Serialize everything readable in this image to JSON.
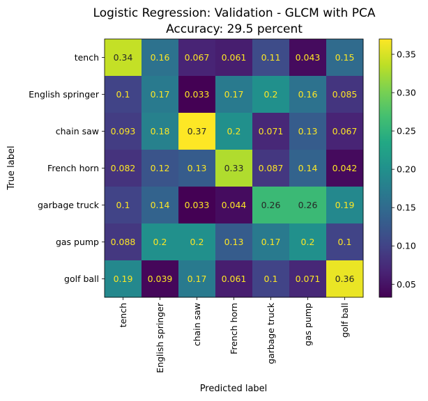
{
  "chart_data": {
    "type": "heatmap",
    "title": "Logistic Regression: Validation - GLCM with PCA",
    "subtitle": "Accuracy: 29.5 percent",
    "xlabel": "Predicted label",
    "ylabel": "True label",
    "x_categories": [
      "tench",
      "English springer",
      "chain saw",
      "French horn",
      "garbage truck",
      "gas pump",
      "golf ball"
    ],
    "y_categories": [
      "tench",
      "English springer",
      "chain saw",
      "French horn",
      "garbage truck",
      "gas pump",
      "golf ball"
    ],
    "values": [
      [
        0.34,
        0.16,
        0.067,
        0.061,
        0.11,
        0.043,
        0.15
      ],
      [
        0.1,
        0.17,
        0.033,
        0.17,
        0.2,
        0.16,
        0.085
      ],
      [
        0.093,
        0.18,
        0.37,
        0.2,
        0.071,
        0.13,
        0.067
      ],
      [
        0.082,
        0.12,
        0.13,
        0.33,
        0.087,
        0.14,
        0.042
      ],
      [
        0.1,
        0.14,
        0.033,
        0.044,
        0.26,
        0.26,
        0.19
      ],
      [
        0.088,
        0.2,
        0.2,
        0.13,
        0.17,
        0.2,
        0.1
      ],
      [
        0.19,
        0.039,
        0.17,
        0.061,
        0.1,
        0.071,
        0.36
      ]
    ],
    "colormap": "viridis",
    "colorbar": {
      "range": [
        0.033,
        0.37
      ],
      "ticks": [
        0.05,
        0.1,
        0.15,
        0.2,
        0.25,
        0.3,
        0.35
      ],
      "tick_labels": [
        "0.05",
        "0.10",
        "0.15",
        "0.20",
        "0.25",
        "0.30",
        "0.35"
      ]
    },
    "text_colors": {
      "light": "#fde725",
      "dark": "#262626"
    }
  }
}
